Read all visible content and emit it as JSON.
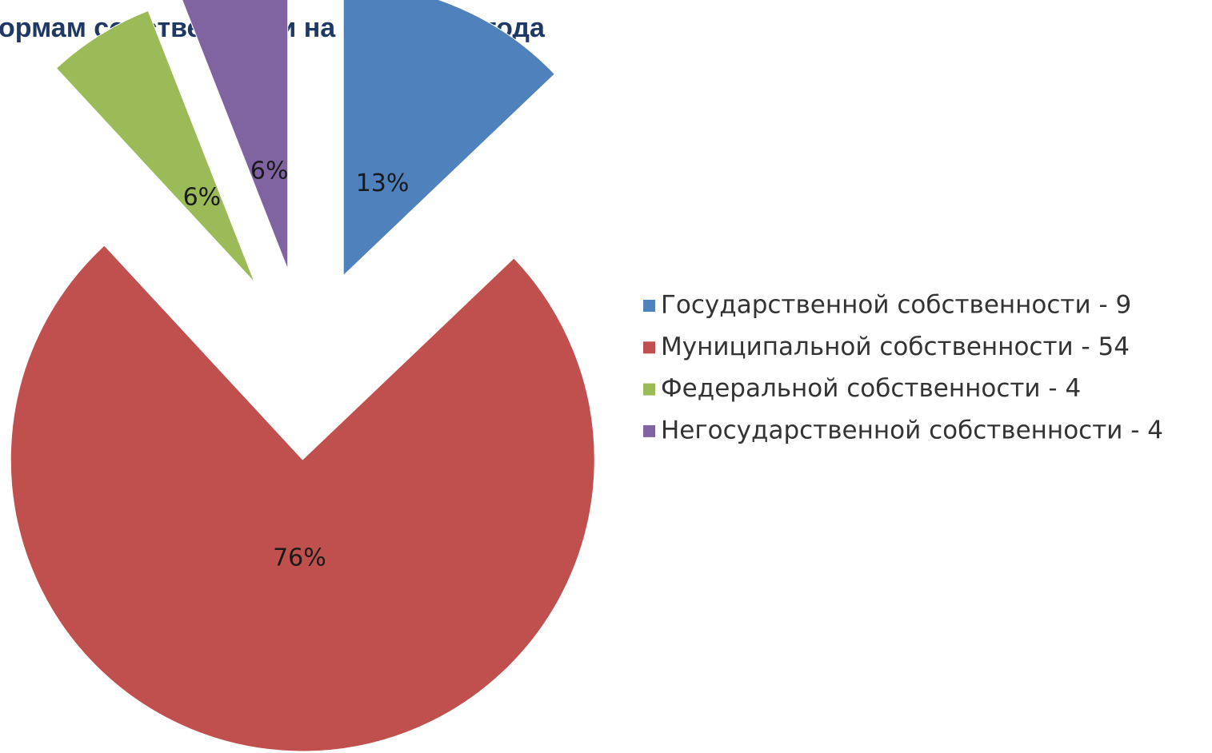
{
  "chart_data": {
    "type": "pie",
    "title": "ормам собственности  на 31.12.2011 года",
    "categories": [
      "Государственной собственности - 9",
      "Муниципальной собственности - 54",
      "Федеральной собственности - 4",
      "Негосударственной собственности - 4"
    ],
    "values": [
      13,
      76,
      6,
      6
    ],
    "value_labels": [
      "13%",
      "76%",
      "6%",
      "6%"
    ],
    "colors": [
      "#4f81bd",
      "#c0504d",
      "#9bbb59",
      "#8064a2"
    ],
    "legend": "right"
  }
}
